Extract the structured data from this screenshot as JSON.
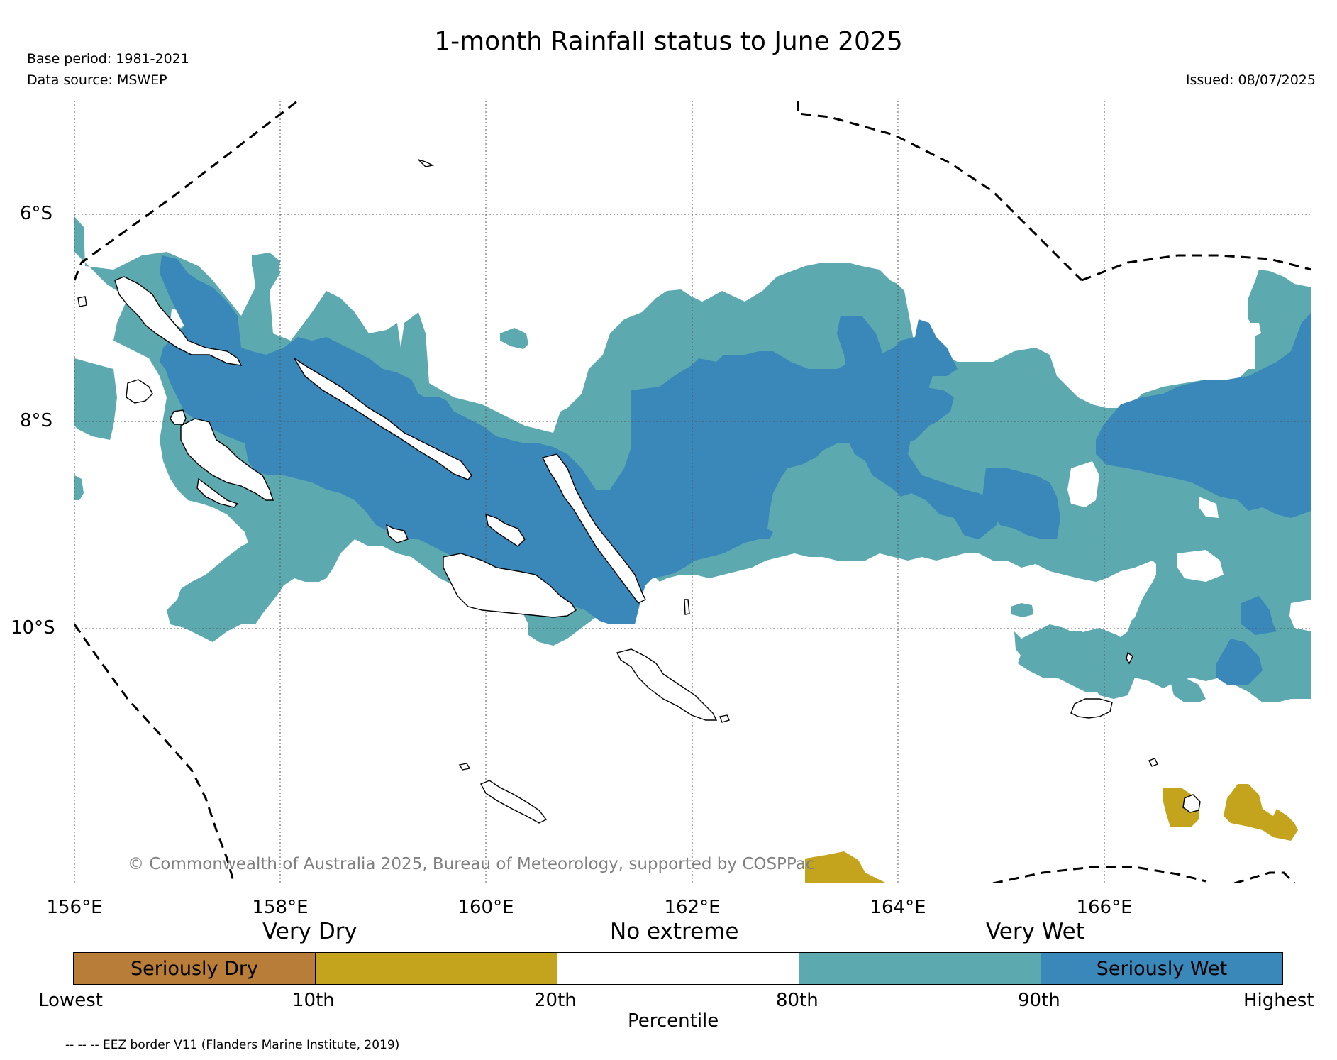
{
  "title": "1-month Rainfall status to June 2025",
  "meta": {
    "base_period": "Base period: 1981-2021",
    "data_source": "Data source: MSWEP",
    "issued": "Issued: 08/07/2025"
  },
  "map": {
    "lat_labels": [
      "6°S",
      "8°S",
      "10°S"
    ],
    "lon_labels": [
      "156°E",
      "158°E",
      "160°E",
      "162°E",
      "164°E",
      "166°E"
    ],
    "copyright": "© Commonwealth of Australia 2025, Bureau of Meteorology, supported by COSPPac"
  },
  "legend": {
    "headers": [
      "Very Dry",
      "No extreme",
      "Very Wet"
    ],
    "categories": [
      {
        "label": "Seriously Dry",
        "color": "#b87d38"
      },
      {
        "label": "",
        "color": "#c4a41c"
      },
      {
        "label": "",
        "color": "#ffffff"
      },
      {
        "label": "",
        "color": "#5ca9b0"
      },
      {
        "label": "Seriously Wet",
        "color": "#3a87ba"
      }
    ],
    "ticks": [
      "Lowest",
      "10th",
      "20th",
      "80th",
      "90th",
      "Highest"
    ],
    "axis_label": "Percentile",
    "footnote": "-- -- -- EEZ border V11 (Flanders Marine Institute, 2019)"
  }
}
